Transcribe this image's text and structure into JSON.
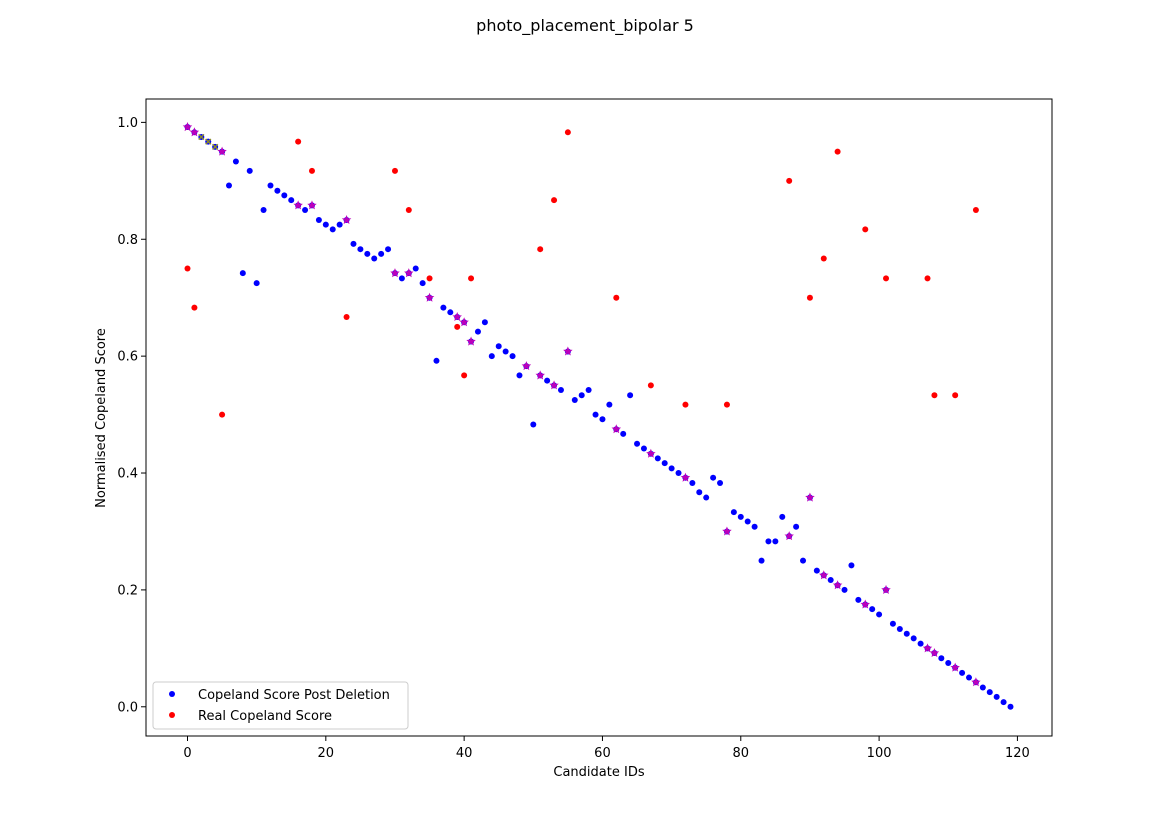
{
  "chart_data": {
    "type": "scatter",
    "title": "photo_placement_bipolar 5",
    "xlabel": "Candidate IDs",
    "ylabel": "Normalised Copeland Score",
    "xlim": [
      -6,
      125
    ],
    "ylim": [
      -0.05,
      1.04
    ],
    "xticks": [
      0,
      20,
      40,
      60,
      80,
      100,
      120
    ],
    "yticks": [
      0.0,
      0.2,
      0.4,
      0.6,
      0.8,
      1.0
    ],
    "grid": false,
    "legend_position": "lower-left",
    "series": [
      {
        "name": "Copeland Score Post Deletion",
        "color": "#0000ff",
        "marker": "dot",
        "x": [
          0,
          1,
          2,
          3,
          4,
          5,
          6,
          7,
          8,
          9,
          10,
          11,
          12,
          13,
          14,
          15,
          16,
          17,
          18,
          19,
          20,
          21,
          22,
          23,
          24,
          25,
          26,
          27,
          28,
          29,
          30,
          31,
          32,
          33,
          34,
          35,
          36,
          37,
          38,
          39,
          40,
          41,
          42,
          43,
          44,
          45,
          46,
          47,
          48,
          49,
          50,
          51,
          52,
          53,
          54,
          55,
          56,
          57,
          58,
          59,
          60,
          61,
          62,
          63,
          64,
          65,
          66,
          67,
          68,
          69,
          70,
          71,
          72,
          73,
          74,
          75,
          76,
          77,
          78,
          79,
          80,
          81,
          82,
          83,
          84,
          85,
          86,
          87,
          88,
          89,
          90,
          91,
          92,
          93,
          94,
          95,
          96,
          97,
          98,
          99,
          100,
          101,
          102,
          103,
          104,
          105,
          106,
          107,
          108,
          109,
          110,
          111,
          112,
          113,
          114,
          115,
          116,
          117,
          118,
          119
        ],
        "y": [
          0.992,
          0.983,
          0.975,
          0.967,
          0.958,
          0.95,
          0.892,
          0.933,
          0.742,
          0.917,
          0.725,
          0.85,
          0.892,
          0.883,
          0.875,
          0.867,
          0.858,
          0.85,
          0.858,
          0.833,
          0.825,
          0.817,
          0.825,
          0.833,
          0.792,
          0.783,
          0.775,
          0.767,
          0.775,
          0.783,
          0.742,
          0.733,
          0.742,
          0.75,
          0.725,
          0.7,
          0.592,
          0.683,
          0.675,
          0.667,
          0.658,
          0.625,
          0.642,
          0.658,
          0.6,
          0.617,
          0.608,
          0.6,
          0.567,
          0.583,
          0.483,
          0.567,
          0.558,
          0.55,
          0.542,
          0.608,
          0.525,
          0.533,
          0.542,
          0.5,
          0.492,
          0.517,
          0.475,
          0.467,
          0.533,
          0.45,
          0.442,
          0.433,
          0.425,
          0.417,
          0.408,
          0.4,
          0.392,
          0.383,
          0.367,
          0.358,
          0.392,
          0.383,
          0.3,
          0.333,
          0.325,
          0.317,
          0.308,
          0.25,
          0.283,
          0.283,
          0.325,
          0.292,
          0.308,
          0.25,
          0.358,
          0.233,
          0.225,
          0.217,
          0.208,
          0.2,
          0.242,
          0.183,
          0.175,
          0.167,
          0.158,
          0.2,
          0.142,
          0.133,
          0.125,
          0.117,
          0.108,
          0.1,
          0.092,
          0.083,
          0.075,
          0.067,
          0.058,
          0.05,
          0.042,
          0.033,
          0.025,
          0.017,
          0.008,
          0.0
        ]
      },
      {
        "name": "Real Copeland Score",
        "color": "#ff0000",
        "marker": "dot",
        "x": [
          0,
          1,
          5,
          16,
          18,
          23,
          30,
          32,
          35,
          39,
          40,
          41,
          51,
          53,
          55,
          62,
          67,
          72,
          78,
          87,
          90,
          92,
          94,
          98,
          101,
          107,
          108,
          111,
          114
        ],
        "y": [
          0.75,
          0.683,
          0.5,
          0.967,
          0.917,
          0.667,
          0.917,
          0.85,
          0.733,
          0.65,
          0.567,
          0.733,
          0.783,
          0.867,
          0.983,
          0.7,
          0.55,
          0.517,
          0.517,
          0.9,
          0.7,
          0.767,
          0.95,
          0.817,
          0.733,
          0.733,
          0.533,
          0.533,
          0.85
        ]
      }
    ],
    "highlight_markers": {
      "color": "#bb00bb",
      "marker": "star",
      "x": [
        0,
        1,
        5,
        16,
        18,
        23,
        30,
        32,
        35,
        39,
        40,
        41,
        49,
        51,
        53,
        55,
        62,
        67,
        72,
        78,
        87,
        90,
        92,
        94,
        98,
        101,
        107,
        108,
        111,
        114
      ],
      "y": [
        0.992,
        0.983,
        0.95,
        0.858,
        0.858,
        0.833,
        0.742,
        0.742,
        0.7,
        0.667,
        0.658,
        0.625,
        0.583,
        0.567,
        0.55,
        0.608,
        0.475,
        0.433,
        0.392,
        0.3,
        0.292,
        0.358,
        0.225,
        0.208,
        0.175,
        0.2,
        0.1,
        0.092,
        0.067,
        0.042
      ]
    },
    "cross_markers": {
      "color": "#8a8a2a",
      "marker": "x",
      "x": [
        2,
        3,
        4
      ],
      "y": [
        0.975,
        0.967,
        0.958
      ]
    }
  }
}
